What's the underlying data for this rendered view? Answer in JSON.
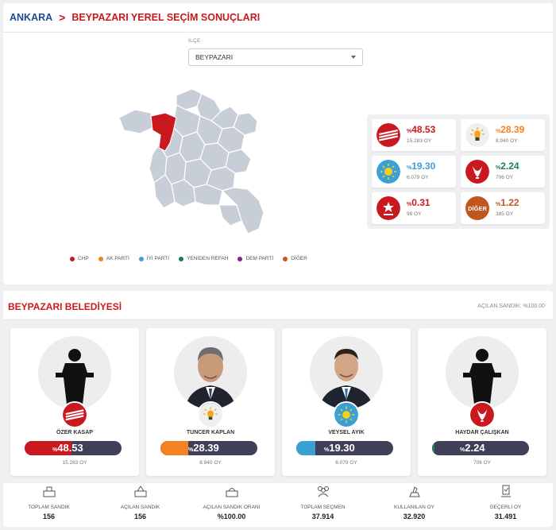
{
  "breadcrumb": {
    "city": "ANKARA",
    "separator": ">",
    "title": "BEYPAZARI YEREL SEÇİM SONUÇLARI"
  },
  "filter": {
    "label": "İLÇE",
    "selected": "BEYPAZARI"
  },
  "legend": [
    {
      "label": "CHP",
      "color": "#c9191f"
    },
    {
      "label": "AK PARTİ",
      "color": "#f58220"
    },
    {
      "label": "İYİ PARTİ",
      "color": "#3aa0d6"
    },
    {
      "label": "YENİDEN REFAH",
      "color": "#1b7f58"
    },
    {
      "label": "DEM PARTİ",
      "color": "#8a1e8d"
    },
    {
      "label": "DİĞER",
      "color": "#c2561f"
    }
  ],
  "results": [
    {
      "party": "CHP",
      "pct_prefix": "%",
      "pct": "48.53",
      "votes": "15.283 OY",
      "color": "#c9191f",
      "icon": "chp-logo-icon"
    },
    {
      "party": "AK PARTİ",
      "pct_prefix": "%",
      "pct": "28.39",
      "votes": "8.940 OY",
      "color": "#f58220",
      "icon": "akp-logo-icon"
    },
    {
      "party": "İYİ PARTİ",
      "pct_prefix": "%",
      "pct": "19.30",
      "votes": "6.079 OY",
      "color": "#3aa0d6",
      "icon": "iyi-logo-icon"
    },
    {
      "party": "YENİDEN REFAH",
      "pct_prefix": "%",
      "pct": "2.24",
      "votes": "706 OY",
      "color": "#1b7f58",
      "icon": "refah-logo-icon"
    },
    {
      "party": "DEM PARTİ",
      "pct_prefix": "%",
      "pct": "0.31",
      "votes": "98 OY",
      "color": "#8a1e8d",
      "icon": "dem-logo-icon"
    },
    {
      "party": "DİĞER",
      "pct_prefix": "%",
      "pct": "1.22",
      "votes": "385 OY",
      "color": "#c2561f",
      "icon": "diger-logo-icon",
      "logo_text": "DİĞER"
    }
  ],
  "section": {
    "title": "BEYPAZARI BELEDİYESİ",
    "opened": "AÇILAN SANDIK: %100.00"
  },
  "candidates": [
    {
      "name": "ÖZER KASAP",
      "pct_prefix": "%",
      "pct": "48.53",
      "share": 0.4853,
      "votes": "15.283 OY",
      "color": "#c9191f",
      "photo": "podium-placeholder-icon",
      "party_icon": "chp-logo-icon"
    },
    {
      "name": "TUNCER KAPLAN",
      "pct_prefix": "%",
      "pct": "28.39",
      "share": 0.2839,
      "votes": "8.940 OY",
      "color": "#f58220",
      "photo": "candidate-photo",
      "party_icon": "akp-logo-icon"
    },
    {
      "name": "VEYSEL AYIK",
      "pct_prefix": "%",
      "pct": "19.30",
      "share": 0.193,
      "votes": "6.079 OY",
      "color": "#3aa0d6",
      "photo": "candidate-photo",
      "party_icon": "iyi-logo-icon"
    },
    {
      "name": "HAYDAR ÇALIŞKAN",
      "pct_prefix": "%",
      "pct": "2.24",
      "share": 0.0224,
      "votes": "706 OY",
      "color": "#1b7f58",
      "photo": "podium-placeholder-icon",
      "party_icon": "refah-logo-icon"
    }
  ],
  "stats": [
    {
      "label": "TOPLAM SANDIK",
      "value": "156",
      "icon": "ballot-box-icon"
    },
    {
      "label": "AÇILAN SANDIK",
      "value": "156",
      "icon": "open-ballot-box-icon"
    },
    {
      "label": "AÇILAN SANDIK ORANI",
      "value": "%100.00",
      "icon": "ballot-ratio-icon"
    },
    {
      "label": "TOPLAM SEÇMEN",
      "value": "37.914",
      "icon": "voters-icon"
    },
    {
      "label": "KULLANILAN OY",
      "value": "32.920",
      "icon": "vote-cast-icon"
    },
    {
      "label": "GEÇERLİ OY",
      "value": "31.491",
      "icon": "valid-vote-icon"
    }
  ]
}
